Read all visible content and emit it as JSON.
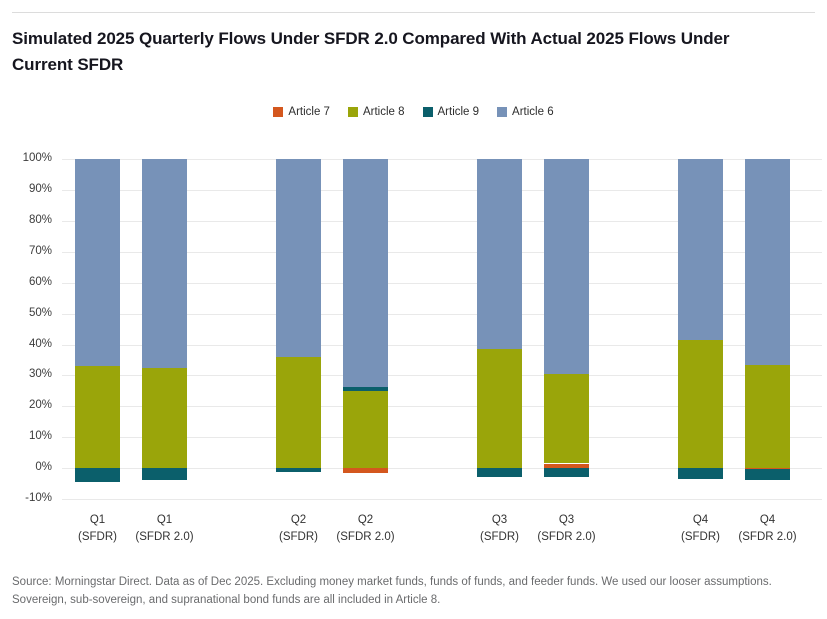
{
  "page": {
    "title": "Simulated 2025 Quarterly Flows Under SFDR 2.0 Compared With Actual 2025 Flows Under Current SFDR",
    "source_line1": "Source: Morningstar Direct. Data as of Dec 2025. Excluding money market funds, funds of funds, and feeder funds. We used our looser assumptions.",
    "source_line2": "Sovereign, sub-sovereign, and supranational bond funds are all included in Article 8."
  },
  "chart_data": {
    "type": "bar",
    "stacked": true,
    "title": "Simulated 2025 Quarterly Flows Under SFDR 2.0 Compared With Actual 2025 Flows Under Current SFDR",
    "categories": [
      {
        "line1": "Q1",
        "line2": "(SFDR)"
      },
      {
        "line1": "Q1",
        "line2": "(SFDR 2.0)"
      },
      {
        "line1": "Q2",
        "line2": "(SFDR)"
      },
      {
        "line1": "Q2",
        "line2": "(SFDR 2.0)"
      },
      {
        "line1": "Q3",
        "line2": "(SFDR)"
      },
      {
        "line1": "Q3",
        "line2": "(SFDR 2.0)"
      },
      {
        "line1": "Q4",
        "line2": "(SFDR)"
      },
      {
        "line1": "Q4",
        "line2": "(SFDR 2.0)"
      }
    ],
    "series": [
      {
        "name": "Article 7",
        "color": "#D4571E",
        "values": [
          0,
          0,
          0,
          -1.5,
          0,
          1.5,
          0,
          -0.4
        ]
      },
      {
        "name": "Article 8",
        "color": "#9AA50A",
        "values": [
          33,
          32.3,
          36,
          25,
          38.5,
          29,
          41.5,
          33.5
        ]
      },
      {
        "name": "Article 9",
        "color": "#0B5F6B",
        "values": [
          -4.5,
          -4,
          -1.3,
          1.2,
          -3,
          -3,
          -3.5,
          -3.5
        ]
      },
      {
        "name": "Article 6",
        "color": "#7792B8",
        "values": [
          67,
          67.7,
          64,
          73.8,
          61.5,
          69.5,
          58.5,
          66.5
        ]
      }
    ],
    "ylim": [
      -10,
      100
    ],
    "yticks": [
      {
        "value": 100,
        "label": "100%"
      },
      {
        "value": 90,
        "label": "90%"
      },
      {
        "value": 80,
        "label": "80%"
      },
      {
        "value": 70,
        "label": "70%"
      },
      {
        "value": 60,
        "label": "60%"
      },
      {
        "value": 50,
        "label": "50%"
      },
      {
        "value": 40,
        "label": "40%"
      },
      {
        "value": 30,
        "label": "30%"
      },
      {
        "value": 20,
        "label": "20%"
      },
      {
        "value": 10,
        "label": "10%"
      },
      {
        "value": 0,
        "label": "0%"
      },
      {
        "value": -10,
        "label": "-10%"
      }
    ],
    "grid": true,
    "legend_position": "top-center"
  }
}
